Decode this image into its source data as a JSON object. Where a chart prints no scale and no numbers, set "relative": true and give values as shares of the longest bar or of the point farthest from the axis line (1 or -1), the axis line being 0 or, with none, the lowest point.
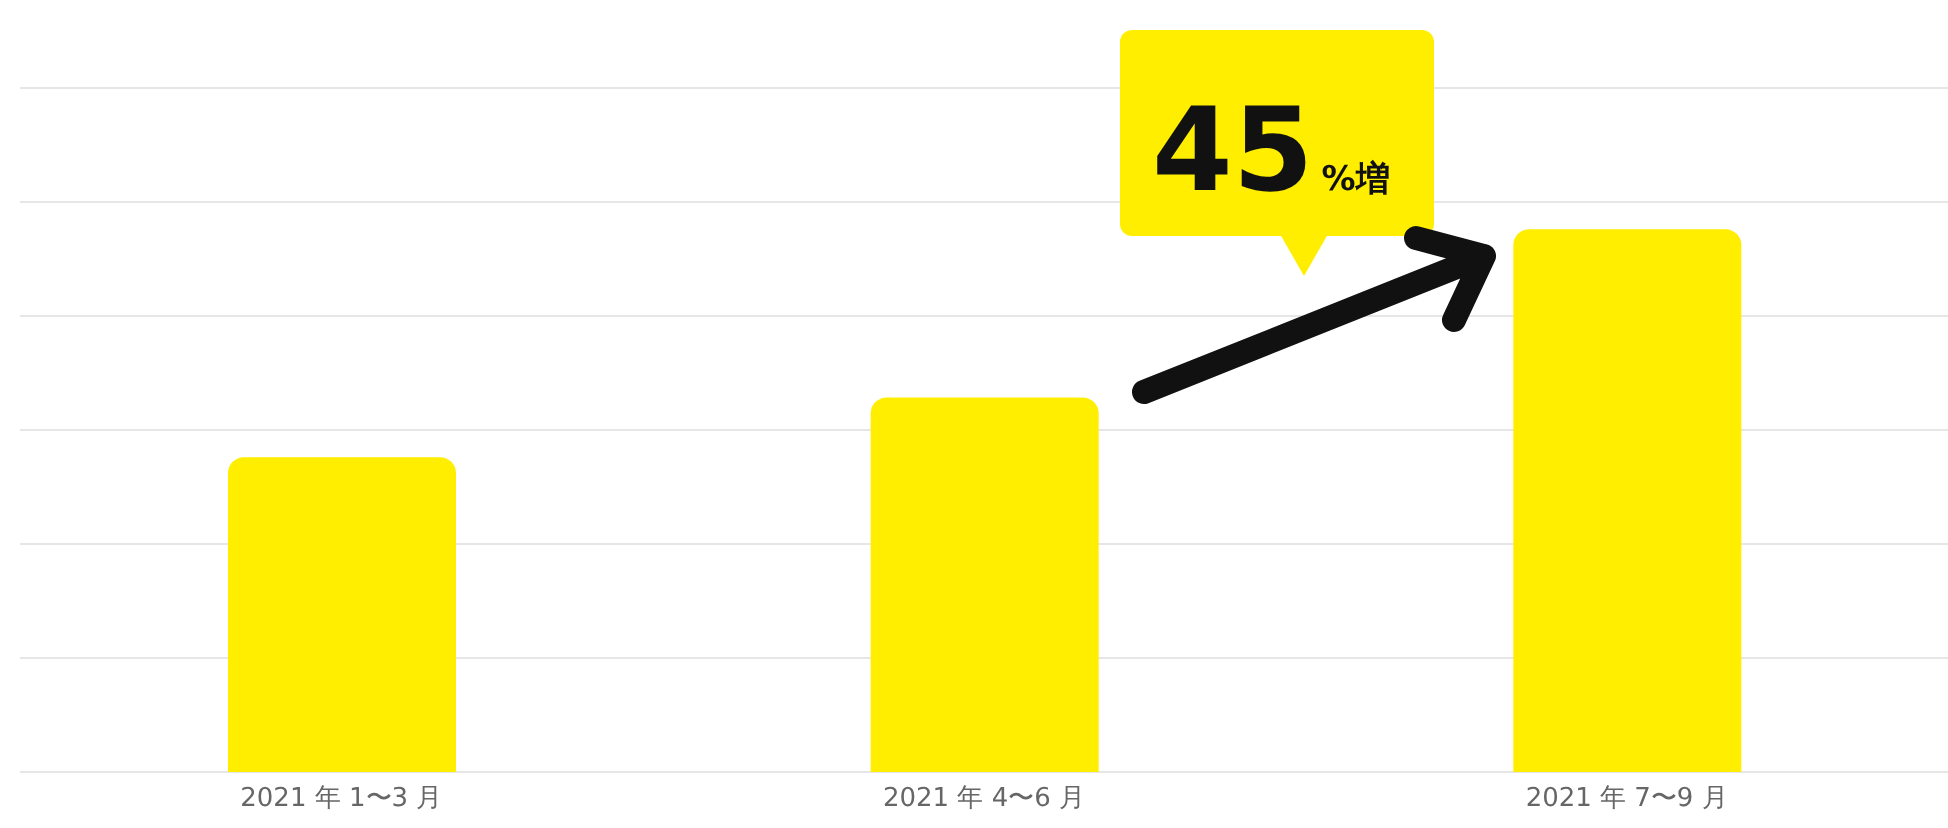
{
  "chart_data": {
    "type": "bar",
    "relative": true,
    "categories": [
      "2021 年 1〜3 月",
      "2021 年 4〜6 月",
      "2021 年 7〜9 月"
    ],
    "values": [
      0.58,
      0.69,
      1
    ],
    "color": "#ffee00",
    "grid": "y",
    "annotations": [
      "45%増"
    ]
  }
}
